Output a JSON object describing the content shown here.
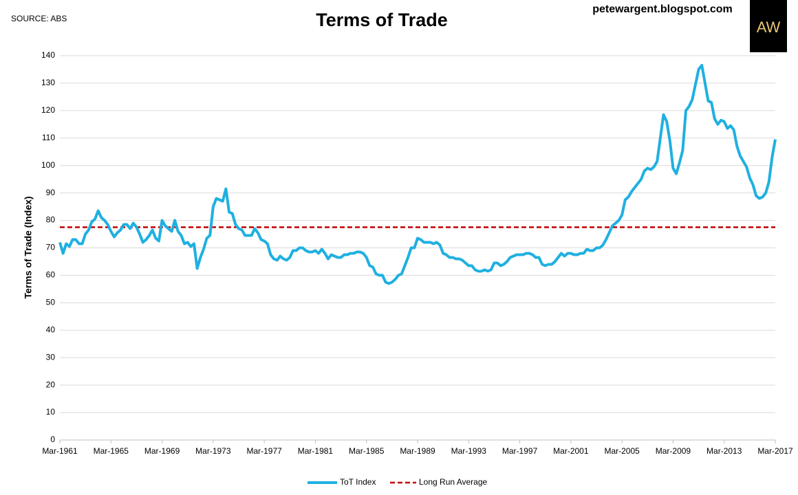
{
  "chart_data": {
    "type": "line",
    "title": "Terms of Trade",
    "source": "SOURCE: ABS",
    "website": "petewargent.blogspot.com",
    "logo": "AW",
    "y_label": "Terms of Trade (Index)",
    "xlim": [
      1961,
      2017
    ],
    "xticks": [
      {
        "value": 1961,
        "label": "Mar-1961"
      },
      {
        "value": 1965,
        "label": "Mar-1965"
      },
      {
        "value": 1969,
        "label": "Mar-1969"
      },
      {
        "value": 1973,
        "label": "Mar-1973"
      },
      {
        "value": 1977,
        "label": "Mar-1977"
      },
      {
        "value": 1981,
        "label": "Mar-1981"
      },
      {
        "value": 1985,
        "label": "Mar-1985"
      },
      {
        "value": 1989,
        "label": "Mar-1989"
      },
      {
        "value": 1993,
        "label": "Mar-1993"
      },
      {
        "value": 1997,
        "label": "Mar-1997"
      },
      {
        "value": 2001,
        "label": "Mar-2001"
      },
      {
        "value": 2005,
        "label": "Mar-2005"
      },
      {
        "value": 2009,
        "label": "Mar-2009"
      },
      {
        "value": 2013,
        "label": "Mar-2013"
      },
      {
        "value": 2017,
        "label": "Mar-2017"
      }
    ],
    "ylim": [
      0,
      140
    ],
    "yticks": [
      0,
      10,
      20,
      30,
      40,
      50,
      60,
      70,
      80,
      90,
      100,
      110,
      120,
      130,
      140
    ],
    "grid": true,
    "x": [
      1961,
      1961.25,
      1961.5,
      1961.75,
      1962,
      1962.25,
      1962.5,
      1962.75,
      1963,
      1963.25,
      1963.5,
      1963.75,
      1964,
      1964.25,
      1964.5,
      1964.75,
      1965,
      1965.25,
      1965.5,
      1965.75,
      1966,
      1966.25,
      1966.5,
      1966.75,
      1967,
      1967.25,
      1967.5,
      1967.75,
      1968,
      1968.25,
      1968.5,
      1968.75,
      1969,
      1969.25,
      1969.5,
      1969.75,
      1970,
      1970.25,
      1970.5,
      1970.75,
      1971,
      1971.25,
      1971.5,
      1971.75,
      1972,
      1972.25,
      1972.5,
      1972.75,
      1973,
      1973.25,
      1973.5,
      1973.75,
      1974,
      1974.25,
      1974.5,
      1974.75,
      1975,
      1975.25,
      1975.5,
      1975.75,
      1976,
      1976.25,
      1976.5,
      1976.75,
      1977,
      1977.25,
      1977.5,
      1977.75,
      1978,
      1978.25,
      1978.5,
      1978.75,
      1979,
      1979.25,
      1979.5,
      1979.75,
      1980,
      1980.25,
      1980.5,
      1980.75,
      1981,
      1981.25,
      1981.5,
      1981.75,
      1982,
      1982.25,
      1982.5,
      1982.75,
      1983,
      1983.25,
      1983.5,
      1983.75,
      1984,
      1984.25,
      1984.5,
      1984.75,
      1985,
      1985.25,
      1985.5,
      1985.75,
      1986,
      1986.25,
      1986.5,
      1986.75,
      1987,
      1987.25,
      1987.5,
      1987.75,
      1988,
      1988.25,
      1988.5,
      1988.75,
      1989,
      1989.25,
      1989.5,
      1989.75,
      1990,
      1990.25,
      1990.5,
      1990.75,
      1991,
      1991.25,
      1991.5,
      1991.75,
      1992,
      1992.25,
      1992.5,
      1992.75,
      1993,
      1993.25,
      1993.5,
      1993.75,
      1994,
      1994.25,
      1994.5,
      1994.75,
      1995,
      1995.25,
      1995.5,
      1995.75,
      1996,
      1996.25,
      1996.5,
      1996.75,
      1997,
      1997.25,
      1997.5,
      1997.75,
      1998,
      1998.25,
      1998.5,
      1998.75,
      1999,
      1999.25,
      1999.5,
      1999.75,
      2000,
      2000.25,
      2000.5,
      2000.75,
      2001,
      2001.25,
      2001.5,
      2001.75,
      2002,
      2002.25,
      2002.5,
      2002.75,
      2003,
      2003.25,
      2003.5,
      2003.75,
      2004,
      2004.25,
      2004.5,
      2004.75,
      2005,
      2005.25,
      2005.5,
      2005.75,
      2006,
      2006.25,
      2006.5,
      2006.75,
      2007,
      2007.25,
      2007.5,
      2007.75,
      2008,
      2008.25,
      2008.5,
      2008.75,
      2009,
      2009.25,
      2009.5,
      2009.75,
      2010,
      2010.25,
      2010.5,
      2010.75,
      2011,
      2011.25,
      2011.5,
      2011.75,
      2012,
      2012.25,
      2012.5,
      2012.75,
      2013,
      2013.25,
      2013.5,
      2013.75,
      2014,
      2014.25,
      2014.5,
      2014.75,
      2015,
      2015.25,
      2015.5,
      2015.75,
      2016,
      2016.25,
      2016.5,
      2016.75,
      2017
    ],
    "series": [
      {
        "name": "ToT Index",
        "color": "#1fb0e0",
        "values": [
          72,
          68,
          71.5,
          70.5,
          73,
          73,
          71.5,
          71.5,
          75,
          76.5,
          79.5,
          80.5,
          83.5,
          81,
          80,
          78.5,
          76,
          74,
          75.5,
          76.5,
          78.5,
          78.5,
          77,
          79,
          77.5,
          75,
          72,
          73,
          74.5,
          76.5,
          73.5,
          72.5,
          80,
          78,
          77,
          76,
          80,
          76,
          74.5,
          71.5,
          72,
          70.5,
          71.5,
          62.5,
          66.5,
          69.5,
          73.5,
          74.5,
          85,
          88,
          87.5,
          87,
          91.5,
          83,
          82.5,
          78.5,
          77,
          76.5,
          74.5,
          74.5,
          74.5,
          77,
          75.5,
          73,
          72.5,
          71.5,
          67.5,
          66,
          65.5,
          67,
          66,
          65.5,
          66.5,
          69,
          69,
          70,
          70,
          69,
          68.5,
          68.5,
          69,
          68,
          69.5,
          68,
          66,
          67.5,
          67,
          66.5,
          66.5,
          67.5,
          67.5,
          68,
          68,
          68.5,
          68.5,
          68,
          66.5,
          63.5,
          63,
          60.5,
          60,
          60,
          57.5,
          57,
          57.5,
          58.5,
          60,
          60.5,
          63.5,
          66.5,
          70,
          70,
          73.5,
          73,
          72,
          72,
          72,
          71.5,
          72,
          71,
          68,
          67.5,
          66.5,
          66.5,
          66,
          66,
          65.5,
          64.5,
          63.5,
          63.5,
          62,
          61.5,
          61.5,
          62,
          61.5,
          62,
          64.5,
          64.5,
          63.5,
          64,
          65,
          66.5,
          67,
          67.5,
          67.5,
          67.5,
          68,
          68,
          67.5,
          66.5,
          66.5,
          64,
          63.5,
          64,
          64,
          65,
          66.5,
          68,
          67,
          68,
          68,
          67.5,
          67.5,
          68,
          68,
          69.5,
          69,
          69,
          70,
          70,
          71,
          73,
          75.5,
          78,
          79,
          80,
          82,
          87.5,
          88.5,
          90.5,
          92,
          93.5,
          95,
          98,
          99,
          98.5,
          99.5,
          101.5,
          110,
          118.5,
          116,
          109,
          99,
          97,
          101,
          105.5,
          120,
          121.5,
          124,
          129.5,
          135,
          136.5,
          130,
          123.5,
          123,
          117,
          115,
          116.5,
          116,
          113.5,
          114.5,
          113,
          107,
          103.5,
          101.5,
          99.5,
          95.5,
          93,
          89,
          88,
          88.5,
          90,
          94,
          103,
          109.5
        ]
      }
    ],
    "reference_line": {
      "name": "Long Run Average",
      "value": 77.5,
      "color": "#c00000"
    }
  }
}
